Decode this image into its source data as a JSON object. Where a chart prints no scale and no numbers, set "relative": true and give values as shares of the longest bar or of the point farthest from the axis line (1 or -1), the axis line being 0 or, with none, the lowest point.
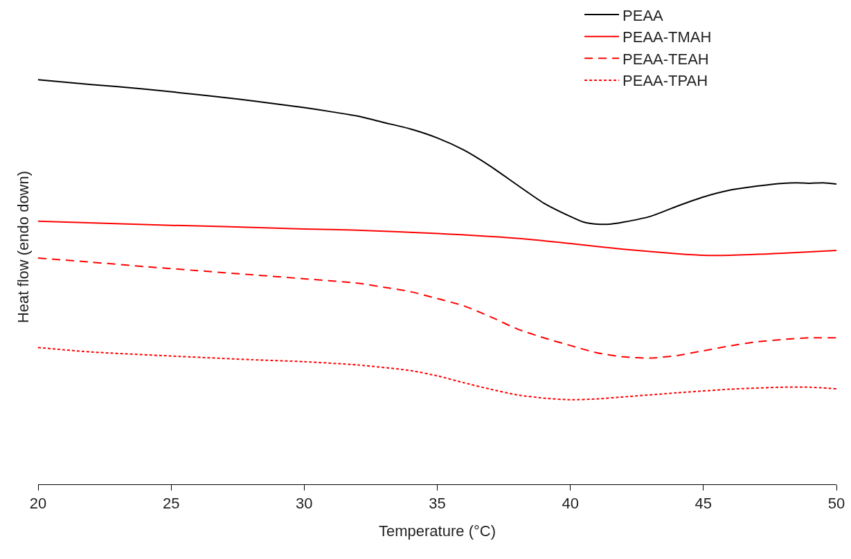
{
  "chart_data": {
    "type": "line",
    "xlabel": "Temperature (°C)",
    "ylabel": "Heat flow (endo down)",
    "relative": true,
    "xlim": [
      20,
      50
    ],
    "xticks": [
      20,
      25,
      30,
      35,
      40,
      45,
      50
    ],
    "grid": false,
    "legend": "top right",
    "marker": "none",
    "series": [
      {
        "name": "PEAA",
        "color": "#000000",
        "line_style": "solid",
        "x": [
          20,
          22,
          24,
          26,
          27,
          28,
          30,
          31,
          32,
          33,
          34,
          35,
          36,
          37,
          38,
          39,
          40,
          40.5,
          41,
          41.5,
          42,
          43,
          44,
          45,
          46,
          47,
          48,
          48.5,
          49,
          49.5,
          50
        ],
        "values": [
          1.0,
          0.988,
          0.977,
          0.963,
          0.956,
          0.948,
          0.931,
          0.921,
          0.91,
          0.894,
          0.878,
          0.856,
          0.826,
          0.786,
          0.74,
          0.695,
          0.662,
          0.648,
          0.643,
          0.643,
          0.648,
          0.662,
          0.687,
          0.71,
          0.727,
          0.737,
          0.744,
          0.745,
          0.744,
          0.745,
          0.742
        ]
      },
      {
        "name": "PEAA-TMAH",
        "color": "#ff0000",
        "line_style": "solid",
        "x": [
          20,
          25,
          27,
          30,
          32,
          35,
          38,
          40,
          42,
          44,
          45,
          46,
          48,
          50
        ],
        "values": [
          0.65,
          0.64,
          0.637,
          0.631,
          0.628,
          0.62,
          0.608,
          0.595,
          0.581,
          0.57,
          0.566,
          0.566,
          0.571,
          0.578
        ]
      },
      {
        "name": "PEAA-TEAH",
        "color": "#ff0000",
        "line_style": "dashed",
        "x": [
          20,
          22,
          24,
          26,
          28,
          30,
          32,
          33,
          34,
          35,
          36,
          37,
          38,
          39,
          40,
          41,
          42,
          43,
          44,
          45,
          46,
          47,
          48,
          49,
          50
        ],
        "values": [
          0.559,
          0.549,
          0.538,
          0.528,
          0.518,
          0.508,
          0.497,
          0.487,
          0.476,
          0.459,
          0.441,
          0.414,
          0.384,
          0.362,
          0.343,
          0.325,
          0.315,
          0.312,
          0.318,
          0.33,
          0.342,
          0.352,
          0.358,
          0.362,
          0.362
        ]
      },
      {
        "name": "PEAA-TPAH",
        "color": "#ff0000",
        "line_style": "dotted",
        "x": [
          20,
          22,
          25,
          28,
          30,
          32,
          34,
          35,
          36,
          37,
          38,
          39,
          40,
          41,
          42,
          44,
          46,
          48,
          49,
          50
        ],
        "values": [
          0.338,
          0.327,
          0.317,
          0.308,
          0.303,
          0.295,
          0.281,
          0.268,
          0.251,
          0.235,
          0.221,
          0.213,
          0.209,
          0.211,
          0.216,
          0.226,
          0.235,
          0.24,
          0.24,
          0.236
        ]
      }
    ]
  }
}
